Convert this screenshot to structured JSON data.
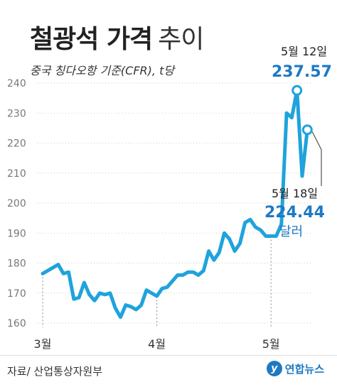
{
  "title": {
    "bold": "철광석 가격",
    "light": "추이"
  },
  "subtitle": "중국 칭다오항 기준(CFR), t당",
  "source": "자료/ 산업통상자원부",
  "logo": {
    "mark": "y",
    "text": "연합뉴스"
  },
  "annotations": [
    {
      "date_label": "5월 12일",
      "value": "237.57"
    },
    {
      "date_label": "5월 18일",
      "value": "224.44",
      "unit": "달러"
    }
  ],
  "colors": {
    "line": "#1fa3dc",
    "value_text": "#1e79c3",
    "title": "#222222",
    "grid": "#cccccc"
  },
  "chart_data": {
    "type": "line",
    "title": "철광석 가격 추이",
    "subtitle": "중국 칭다오항 기준(CFR), t당",
    "x_ticks": [
      "3월",
      "4월",
      "5월"
    ],
    "x_tick_index": [
      0,
      22,
      44
    ],
    "y_ticks": [
      160,
      170,
      180,
      190,
      200,
      210,
      220,
      230,
      240
    ],
    "ylim": [
      160,
      240
    ],
    "grid": true,
    "series": [
      {
        "values": [
          176.5,
          177.5,
          178.5,
          179.5,
          176.5,
          177,
          168,
          168.5,
          173.5,
          169.5,
          167.5,
          170,
          169.5,
          170,
          165,
          162,
          166,
          165.5,
          164.5,
          166,
          171,
          170,
          169,
          171.5,
          172,
          174,
          176,
          176,
          177,
          177,
          176,
          177.5,
          184,
          181,
          183.5,
          190,
          188,
          184,
          186.5,
          193.5,
          194.5,
          192,
          191,
          189,
          189,
          189,
          193,
          230,
          228.5,
          237.57,
          209,
          224.44
        ]
      }
    ],
    "annotations": [
      {
        "date": "5월 12일",
        "value": 237.57,
        "index": 49
      },
      {
        "date": "5월 18일",
        "value": 224.44,
        "index": 51
      }
    ]
  }
}
